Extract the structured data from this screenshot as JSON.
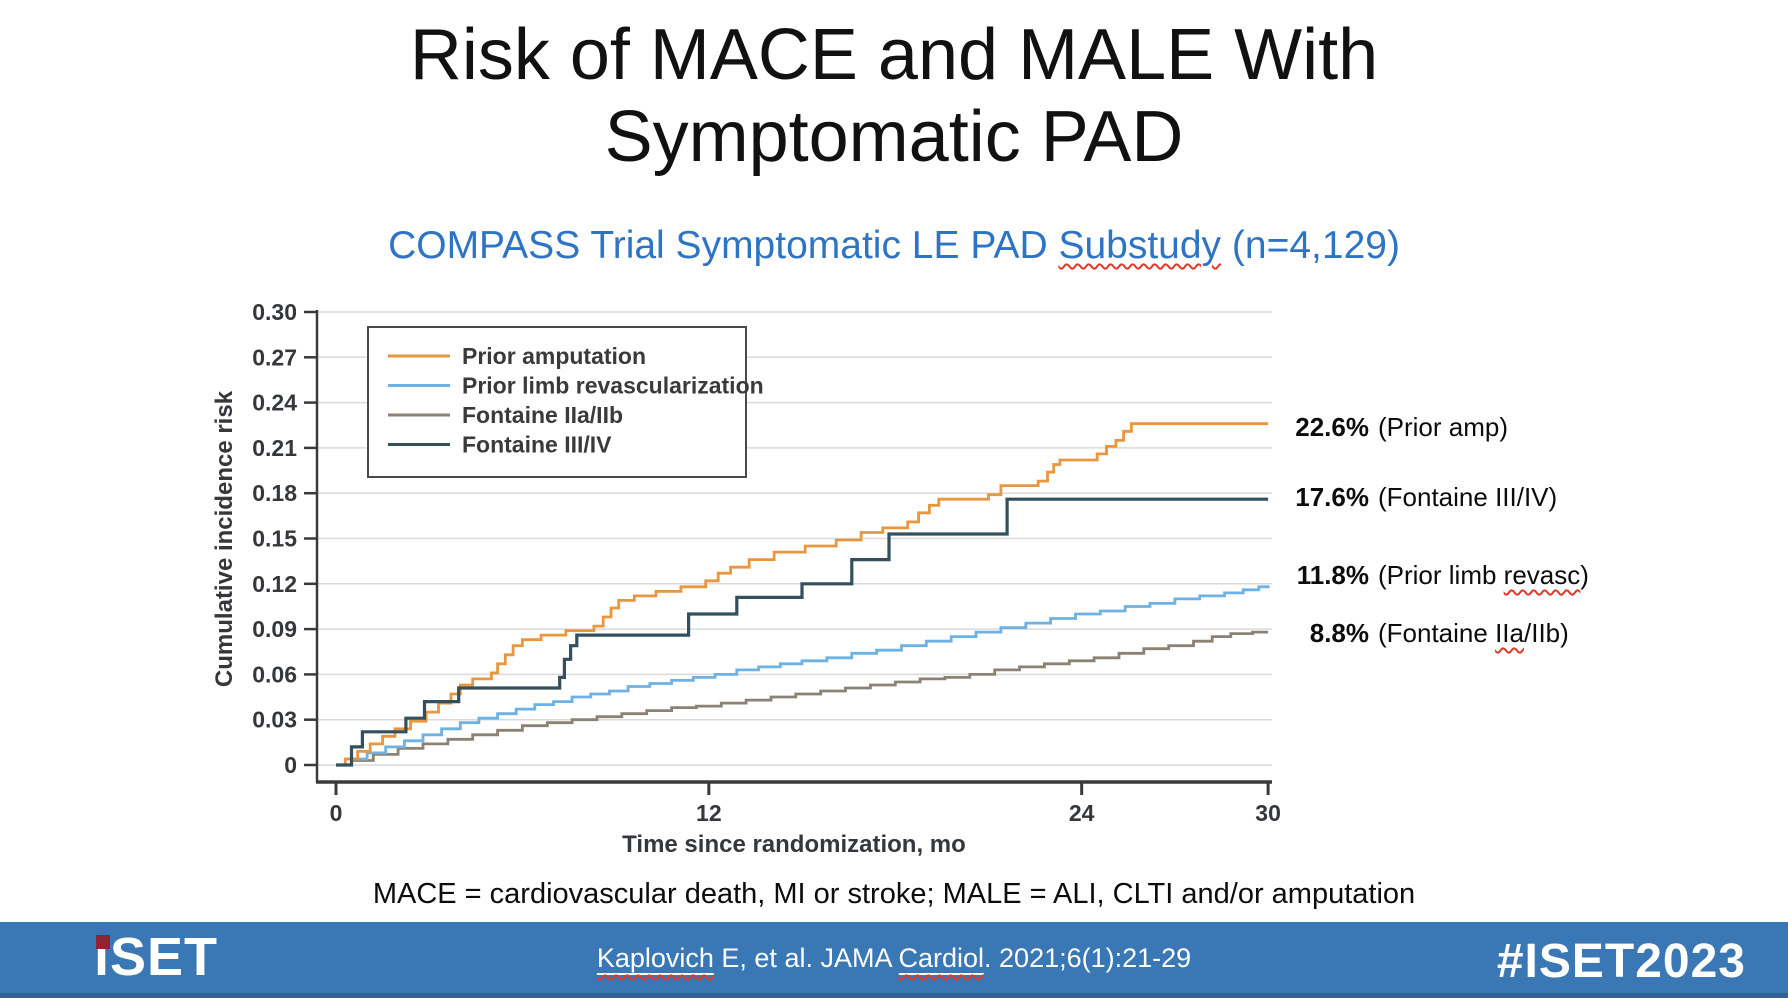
{
  "title": {
    "line1": "Risk of MACE and MALE With",
    "line2": "Symptomatic PAD"
  },
  "subtitle": {
    "pre": "COMPASS Trial Symptomatic LE PAD ",
    "flagged": "Substudy",
    "post": " (n=4,129)"
  },
  "chart_data": {
    "type": "line",
    "subtype": "cumulative-incidence-step-curves",
    "title": "",
    "xlabel": "Time since randomization, mo",
    "ylabel": "Cumulative incidence risk",
    "xlim": [
      0,
      30
    ],
    "ylim": [
      0,
      0.3
    ],
    "grid": true,
    "legend_position": "top-left-inside",
    "xticks": [
      {
        "label": "0",
        "v": 0
      },
      {
        "label": "12",
        "v": 12
      },
      {
        "label": "24",
        "v": 24
      },
      {
        "label": "30",
        "v": 30
      }
    ],
    "yticks": [
      {
        "label": "0",
        "v": 0
      },
      {
        "label": "0.03",
        "v": 0.03
      },
      {
        "label": "0.06",
        "v": 0.06
      },
      {
        "label": "0.09",
        "v": 0.09
      },
      {
        "label": "0.12",
        "v": 0.12
      },
      {
        "label": "0.15",
        "v": 0.15
      },
      {
        "label": "0.18",
        "v": 0.18
      },
      {
        "label": "0.21",
        "v": 0.21
      },
      {
        "label": "0.24",
        "v": 0.24
      },
      {
        "label": "0.27",
        "v": 0.27
      },
      {
        "label": "0.30",
        "v": 0.3
      }
    ],
    "series": [
      {
        "name": "Prior amputation",
        "color": "#E8963F",
        "final_value": "22.6%",
        "points": [
          [
            0,
            0
          ],
          [
            0.3,
            0.004
          ],
          [
            0.7,
            0.009
          ],
          [
            1.1,
            0.014
          ],
          [
            1.5,
            0.019
          ],
          [
            1.9,
            0.024
          ],
          [
            2.4,
            0.029
          ],
          [
            2.9,
            0.035
          ],
          [
            3.3,
            0.041
          ],
          [
            3.7,
            0.047
          ],
          [
            4.0,
            0.053
          ],
          [
            4.4,
            0.057
          ],
          [
            5.0,
            0.061
          ],
          [
            5.2,
            0.067
          ],
          [
            5.45,
            0.073
          ],
          [
            5.7,
            0.079
          ],
          [
            6.0,
            0.083
          ],
          [
            6.6,
            0.086
          ],
          [
            7.4,
            0.089
          ],
          [
            8.3,
            0.092
          ],
          [
            8.6,
            0.098
          ],
          [
            8.85,
            0.104
          ],
          [
            9.1,
            0.109
          ],
          [
            9.6,
            0.112
          ],
          [
            10.3,
            0.115
          ],
          [
            11.1,
            0.118
          ],
          [
            11.9,
            0.122
          ],
          [
            12.3,
            0.127
          ],
          [
            12.7,
            0.131
          ],
          [
            13.3,
            0.136
          ],
          [
            14.1,
            0.141
          ],
          [
            15.1,
            0.145
          ],
          [
            16.1,
            0.149
          ],
          [
            16.9,
            0.154
          ],
          [
            17.6,
            0.157
          ],
          [
            18.4,
            0.161
          ],
          [
            18.75,
            0.167
          ],
          [
            19.1,
            0.172
          ],
          [
            19.4,
            0.176
          ],
          [
            21.0,
            0.179
          ],
          [
            21.4,
            0.185
          ],
          [
            22.6,
            0.188
          ],
          [
            22.9,
            0.194
          ],
          [
            23.1,
            0.199
          ],
          [
            23.3,
            0.202
          ],
          [
            24.5,
            0.206
          ],
          [
            24.8,
            0.211
          ],
          [
            25.1,
            0.215
          ],
          [
            25.35,
            0.221
          ],
          [
            25.6,
            0.226
          ],
          [
            30,
            0.226
          ]
        ]
      },
      {
        "name": "Prior limb revascularization",
        "color": "#6EB1E4",
        "final_value": "11.8%",
        "points": [
          [
            0,
            0
          ],
          [
            0.5,
            0.004
          ],
          [
            1.0,
            0.008
          ],
          [
            1.6,
            0.012
          ],
          [
            2.2,
            0.016
          ],
          [
            2.8,
            0.02
          ],
          [
            3.4,
            0.024
          ],
          [
            4.0,
            0.028
          ],
          [
            4.6,
            0.031
          ],
          [
            5.2,
            0.034
          ],
          [
            5.8,
            0.037
          ],
          [
            6.4,
            0.04
          ],
          [
            7.0,
            0.042
          ],
          [
            7.6,
            0.045
          ],
          [
            8.2,
            0.047
          ],
          [
            8.8,
            0.049
          ],
          [
            9.4,
            0.052
          ],
          [
            10.1,
            0.054
          ],
          [
            10.8,
            0.056
          ],
          [
            11.5,
            0.058
          ],
          [
            12.2,
            0.06
          ],
          [
            12.9,
            0.063
          ],
          [
            13.6,
            0.065
          ],
          [
            14.3,
            0.067
          ],
          [
            15.0,
            0.069
          ],
          [
            15.8,
            0.071
          ],
          [
            16.6,
            0.074
          ],
          [
            17.4,
            0.076
          ],
          [
            18.2,
            0.079
          ],
          [
            19.0,
            0.082
          ],
          [
            19.8,
            0.085
          ],
          [
            20.6,
            0.088
          ],
          [
            21.4,
            0.091
          ],
          [
            22.2,
            0.094
          ],
          [
            23.0,
            0.097
          ],
          [
            23.8,
            0.1
          ],
          [
            24.6,
            0.102
          ],
          [
            25.4,
            0.105
          ],
          [
            26.2,
            0.107
          ],
          [
            27.0,
            0.11
          ],
          [
            27.8,
            0.112
          ],
          [
            28.6,
            0.114
          ],
          [
            29.2,
            0.116
          ],
          [
            29.7,
            0.118
          ],
          [
            30,
            0.119
          ]
        ]
      },
      {
        "name": "Fontaine IIa/IIb",
        "color": "#8B8274",
        "final_value": "8.8%",
        "points": [
          [
            0,
            0
          ],
          [
            0.5,
            0.003
          ],
          [
            1.2,
            0.007
          ],
          [
            2.0,
            0.011
          ],
          [
            2.8,
            0.014
          ],
          [
            3.6,
            0.017
          ],
          [
            4.4,
            0.02
          ],
          [
            5.2,
            0.023
          ],
          [
            6.0,
            0.026
          ],
          [
            6.8,
            0.028
          ],
          [
            7.6,
            0.03
          ],
          [
            8.4,
            0.032
          ],
          [
            9.2,
            0.034
          ],
          [
            10.0,
            0.036
          ],
          [
            10.8,
            0.038
          ],
          [
            11.6,
            0.039
          ],
          [
            12.4,
            0.041
          ],
          [
            13.2,
            0.043
          ],
          [
            14.0,
            0.045
          ],
          [
            14.8,
            0.047
          ],
          [
            15.6,
            0.049
          ],
          [
            16.4,
            0.051
          ],
          [
            17.2,
            0.053
          ],
          [
            18.0,
            0.055
          ],
          [
            18.8,
            0.057
          ],
          [
            19.6,
            0.058
          ],
          [
            20.4,
            0.06
          ],
          [
            21.2,
            0.063
          ],
          [
            22.0,
            0.065
          ],
          [
            22.8,
            0.067
          ],
          [
            23.6,
            0.069
          ],
          [
            24.4,
            0.071
          ],
          [
            25.2,
            0.074
          ],
          [
            26.0,
            0.077
          ],
          [
            26.8,
            0.079
          ],
          [
            27.6,
            0.082
          ],
          [
            28.2,
            0.085
          ],
          [
            28.8,
            0.087
          ],
          [
            29.5,
            0.088
          ],
          [
            30,
            0.088
          ]
        ]
      },
      {
        "name": "Fontaine III/IV",
        "color": "#33505C",
        "final_value": "17.6%",
        "points": [
          [
            0,
            0
          ],
          [
            0.5,
            0.012
          ],
          [
            0.85,
            0.022
          ],
          [
            2.25,
            0.031
          ],
          [
            2.85,
            0.042
          ],
          [
            3.95,
            0.051
          ],
          [
            7.2,
            0.058
          ],
          [
            7.35,
            0.07
          ],
          [
            7.55,
            0.079
          ],
          [
            7.75,
            0.086
          ],
          [
            11.35,
            0.1
          ],
          [
            12.9,
            0.111
          ],
          [
            15.0,
            0.12
          ],
          [
            16.6,
            0.136
          ],
          [
            17.8,
            0.153
          ],
          [
            21.6,
            0.176
          ],
          [
            30,
            0.176
          ]
        ]
      }
    ]
  },
  "annotations": [
    {
      "pct": "22.6%",
      "segments": [
        {
          "text": "(Prior amp)",
          "flag": false
        }
      ]
    },
    {
      "pct": "17.6%",
      "segments": [
        {
          "text": "(Fontaine III/IV)",
          "flag": false
        }
      ]
    },
    {
      "pct": "11.8%",
      "segments": [
        {
          "text": "(Prior limb ",
          "flag": false
        },
        {
          "text": "revasc",
          "flag": true
        },
        {
          "text": ")",
          "flag": false
        }
      ]
    },
    {
      "pct": "8.8%",
      "segments": [
        {
          "text": "(Fontaine ",
          "flag": false
        },
        {
          "text": "IIa",
          "flag": true
        },
        {
          "text": "/IIb)",
          "flag": false
        }
      ]
    }
  ],
  "footnote": "MACE = cardiovascular death, MI or stroke; MALE = ALI, CLTI and/or amputation",
  "footer": {
    "logo_text": "iSET",
    "citation_segments": [
      {
        "text": "Kaplovich",
        "flag": true
      },
      {
        "text": " E, et al. JAMA ",
        "flag": false
      },
      {
        "text": "Cardiol",
        "flag": true
      },
      {
        "text": ". 2021;6(1):21-29",
        "flag": false
      }
    ],
    "hashtag": "#ISET2023"
  },
  "colors": {
    "subtitle_blue": "#2E74C4",
    "footer_blue": "#3A77B5",
    "footer_strip_blue": "#2F639A",
    "squiggle_red": "#E0392B",
    "logo_dot_red": "#8E2432",
    "gridline_gray": "#DADADA",
    "axis_dark": "#3A3A3A"
  }
}
